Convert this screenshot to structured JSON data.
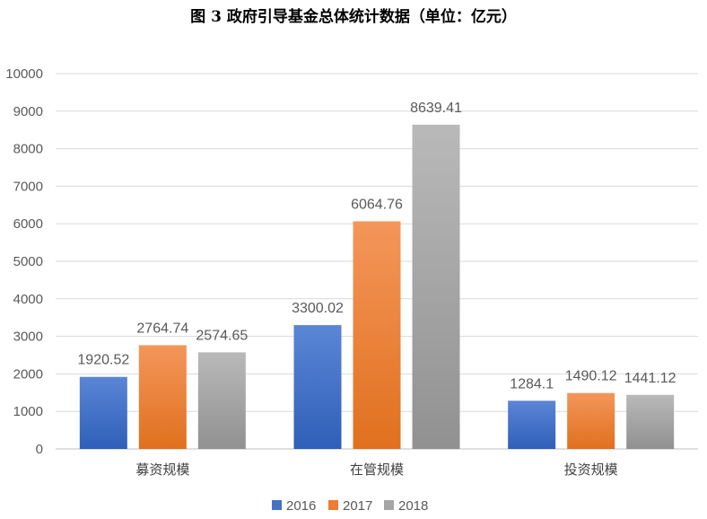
{
  "chart_data": {
    "type": "bar",
    "title": "图 3 政府引导基金总体统计数据（单位：亿元）",
    "categories": [
      "募资规模",
      "在管规模",
      "投资规模"
    ],
    "series": [
      {
        "name": "2016",
        "values": [
          1920.52,
          3300.02,
          1284.1
        ],
        "labels": [
          "1920.52",
          "3300.02",
          "1284.1"
        ]
      },
      {
        "name": "2017",
        "values": [
          2764.74,
          6064.76,
          1490.12
        ],
        "labels": [
          "2764.74",
          "6064.76",
          "1490.12"
        ]
      },
      {
        "name": "2018",
        "values": [
          2574.65,
          8639.41,
          1441.12
        ],
        "labels": [
          "2574.65",
          "8639.41",
          "1441.12"
        ]
      }
    ],
    "ylim": [
      0,
      10000
    ],
    "yticks": [
      "0",
      "1000",
      "2000",
      "3000",
      "4000",
      "5000",
      "6000",
      "7000",
      "8000",
      "9000",
      "10000"
    ],
    "grid": true,
    "legend_position": "bottom"
  },
  "colors": {
    "2016": "#4472C4",
    "2017": "#ED7D31",
    "2018": "#A5A5A5"
  }
}
